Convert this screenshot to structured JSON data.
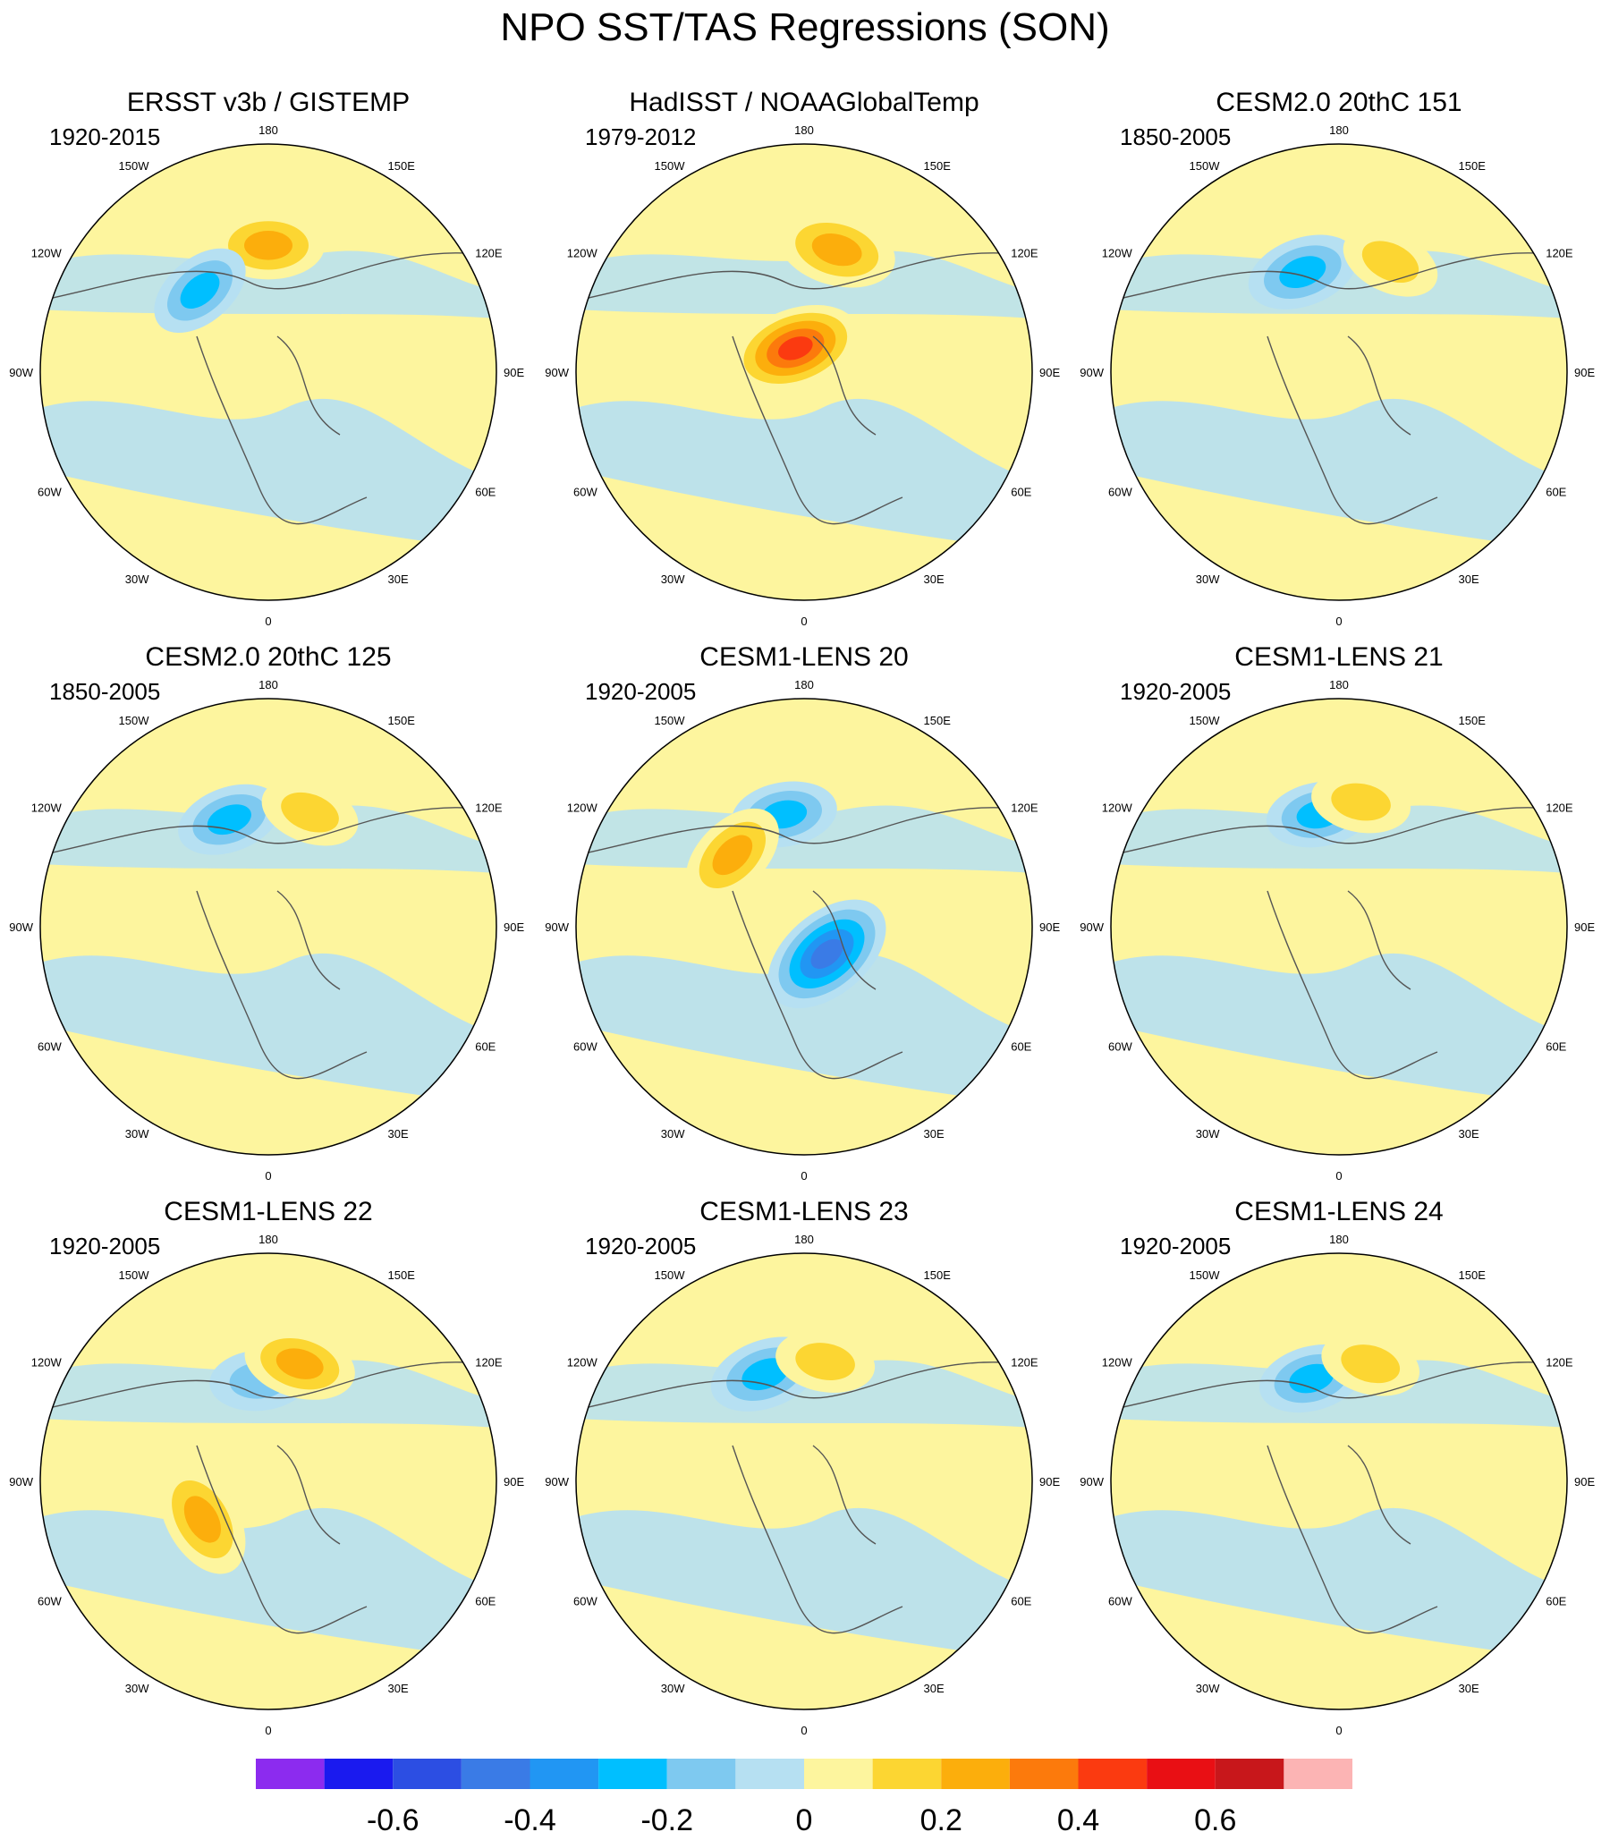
{
  "chart_data": {
    "type": "map-panel-grid",
    "title": "NPO SST/TAS Regressions (SON)",
    "projection": "polar-stereographic (north pole centered)",
    "longitude_labels": [
      "180",
      "150E",
      "120E",
      "90E",
      "60E",
      "30E",
      "0",
      "30W",
      "60W",
      "90W",
      "120W",
      "150W"
    ],
    "panels": [
      {
        "title": "ERSST v3b / GISTEMP",
        "period": "1920-2015",
        "features": [
          {
            "name": "positive anomaly near dateline",
            "lon": 180,
            "lat": 40,
            "value": 0.3
          },
          {
            "name": "negative anomaly northeast Pacific",
            "lon": -140,
            "lat": 48,
            "value": -0.25
          }
        ]
      },
      {
        "title": "HadISST / NOAAGlobalTemp",
        "period": "1979-2012",
        "features": [
          {
            "name": "positive anomaly western Pacific",
            "lon": 165,
            "lat": 40,
            "value": 0.35
          },
          {
            "name": "positive anomaly Arctic Alaska",
            "lon": -160,
            "lat": 80,
            "value": 0.45
          }
        ]
      },
      {
        "title": "CESM2.0 20thC 151",
        "period": "1850-2005",
        "features": [
          {
            "name": "negative anomaly central North Pacific",
            "lon": -160,
            "lat": 48,
            "value": -0.3
          },
          {
            "name": "positive anomaly western Pacific",
            "lon": 155,
            "lat": 42,
            "value": 0.2
          }
        ]
      },
      {
        "title": "CESM2.0 20thC 125",
        "period": "1850-2005",
        "features": [
          {
            "name": "negative anomaly central North Pacific",
            "lon": -160,
            "lat": 45,
            "value": -0.25
          },
          {
            "name": "positive anomaly western Pacific",
            "lon": 160,
            "lat": 42,
            "value": 0.2
          }
        ]
      },
      {
        "title": "CESM1-LENS 20",
        "period": "1920-2005",
        "features": [
          {
            "name": "negative anomaly central North Pacific",
            "lon": -170,
            "lat": 45,
            "value": -0.25
          },
          {
            "name": "positive anomaly Gulf of Alaska",
            "lon": -135,
            "lat": 50,
            "value": 0.3
          },
          {
            "name": "negative anomaly Barents Sea",
            "lon": 40,
            "lat": 76,
            "value": -0.5
          }
        ]
      },
      {
        "title": "CESM1-LENS 21",
        "period": "1920-2005",
        "features": [
          {
            "name": "negative anomaly North Pacific",
            "lon": -170,
            "lat": 45,
            "value": -0.25
          },
          {
            "name": "positive anomaly western Pacific",
            "lon": 170,
            "lat": 40,
            "value": 0.2
          }
        ]
      },
      {
        "title": "CESM1-LENS 22",
        "period": "1920-2005",
        "features": [
          {
            "name": "negative anomaly North Pacific",
            "lon": -175,
            "lat": 50,
            "value": -0.2
          },
          {
            "name": "positive anomaly western Pacific",
            "lon": 165,
            "lat": 42,
            "value": 0.3
          },
          {
            "name": "positive anomaly Labrador Sea",
            "lon": -60,
            "lat": 60,
            "value": 0.35
          }
        ]
      },
      {
        "title": "CESM1-LENS 23",
        "period": "1920-2005",
        "features": [
          {
            "name": "negative anomaly central North Pacific",
            "lon": -160,
            "lat": 45,
            "value": -0.3
          },
          {
            "name": "positive anomaly western Pacific",
            "lon": 170,
            "lat": 42,
            "value": 0.2
          }
        ]
      },
      {
        "title": "CESM1-LENS 24",
        "period": "1920-2005",
        "features": [
          {
            "name": "negative anomaly North Pacific",
            "lon": -165,
            "lat": 48,
            "value": -0.25
          },
          {
            "name": "positive anomaly western Pacific",
            "lon": 165,
            "lat": 42,
            "value": 0.2
          }
        ]
      }
    ],
    "colorbar": {
      "ticks": [
        "-0.6",
        "-0.4",
        "-0.2",
        "0",
        "0.2",
        "0.4",
        "0.6"
      ],
      "levels": [
        -0.7,
        -0.6,
        -0.5,
        -0.4,
        -0.3,
        -0.2,
        -0.1,
        0,
        0.1,
        0.2,
        0.3,
        0.4,
        0.5,
        0.6,
        0.7
      ],
      "colors": [
        "#8c2bef",
        "#1a1aef",
        "#2c4ee3",
        "#3a7be6",
        "#2196f3",
        "#00bfff",
        "#7ec9f0",
        "#b6e0f2",
        "#fdf59e",
        "#fcd632",
        "#fcae0c",
        "#fc7a0c",
        "#fb3a10",
        "#e90f14",
        "#c8171b",
        "#fcb4b4"
      ]
    }
  }
}
